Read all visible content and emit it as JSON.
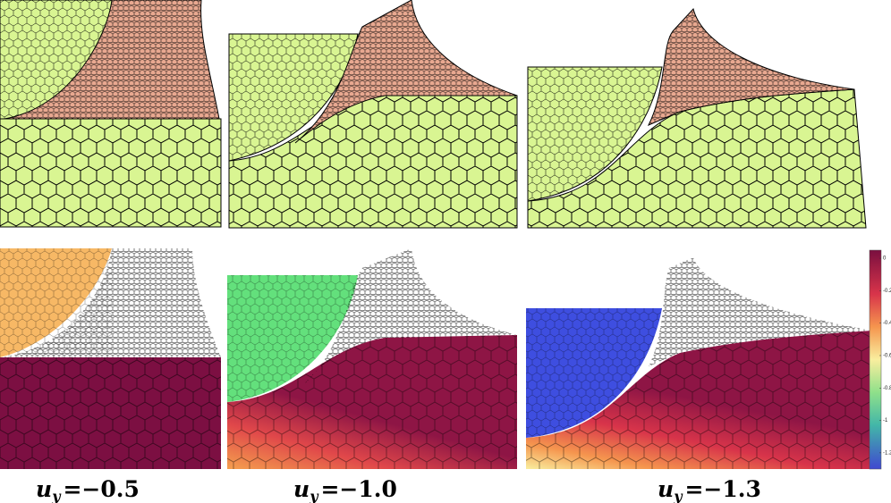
{
  "panels": [
    {
      "label": {
        "base": "u",
        "sub": "y",
        "rest": "=−0.5"
      }
    },
    {
      "label": {
        "base": "u",
        "sub": "y",
        "rest": "=−1.0"
      }
    },
    {
      "label": {
        "base": "u",
        "sub": "y",
        "rest": "=−1.3"
      }
    }
  ],
  "colorbar": {
    "lim": [
      -1.3,
      0.05
    ],
    "ticks": [
      0,
      -0.2,
      -0.4,
      -0.6,
      -0.8,
      -1,
      -1.2
    ]
  }
}
